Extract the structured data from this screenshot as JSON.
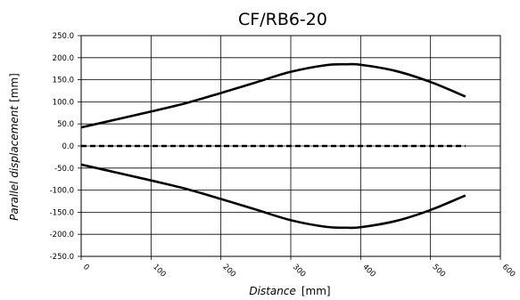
{
  "chart_data": {
    "type": "line",
    "title": "CF/RB6-20",
    "xlabel_main": "Distance",
    "xlabel_unit": "[mm]",
    "ylabel_main": "Parallel displacement",
    "ylabel_unit": "[mm]",
    "xlim": [
      0,
      600
    ],
    "ylim": [
      -250,
      250
    ],
    "x_ticks": [
      0,
      100,
      200,
      300,
      400,
      500,
      600
    ],
    "x_tick_labels": [
      "0",
      "100",
      "200",
      "300",
      "400",
      "500",
      "600"
    ],
    "y_ticks": [
      250,
      200,
      150,
      100,
      50,
      0,
      -50,
      -100,
      -150,
      -200,
      -250
    ],
    "y_tick_labels": [
      "250.0",
      "200.0",
      "150.0",
      "100.0",
      "50.0",
      "0.0",
      "-50.0",
      "-100.0",
      "-150.0",
      "-200.0",
      "-250.0"
    ],
    "grid": {
      "horizontal": true,
      "vertical": true
    },
    "series": [
      {
        "style": "solid",
        "x": [
          0,
          50,
          100,
          150,
          200,
          250,
          300,
          350,
          380,
          400,
          450,
          500,
          550
        ],
        "y": [
          42,
          60,
          78,
          97,
          120,
          144,
          168,
          183,
          185,
          184,
          170,
          145,
          112
        ]
      },
      {
        "style": "dashed",
        "x": [
          0,
          550
        ],
        "y": [
          0,
          0
        ]
      },
      {
        "style": "solid",
        "x": [
          0,
          50,
          100,
          150,
          200,
          250,
          300,
          350,
          380,
          400,
          450,
          500,
          550
        ],
        "y": [
          -42,
          -60,
          -78,
          -97,
          -120,
          -144,
          -168,
          -183,
          -185,
          -184,
          -170,
          -145,
          -112
        ]
      }
    ]
  }
}
